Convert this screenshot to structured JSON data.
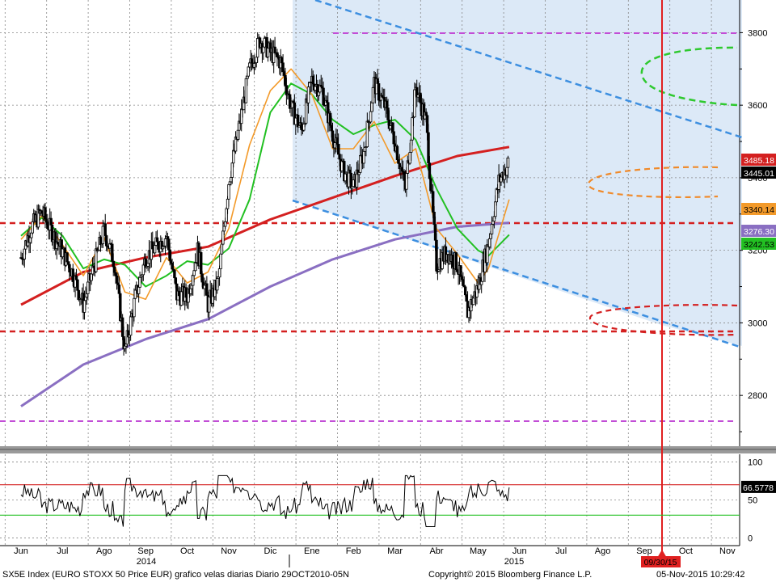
{
  "footer": {
    "title": "SX5E Index (EURO STOXX 50 Price EUR) grafico velas diarias Diario 29OCT2010-05N",
    "copyright": "Copyright© 2015 Bloomberg Finance L.P.",
    "timestamp": "05-Nov-2015 10:29:42"
  },
  "chart_data": [
    {
      "type": "candlestick",
      "title": "",
      "xlabel": "",
      "ylabel": "",
      "x_ticks": [
        "Jun",
        "Jul",
        "Ago",
        "Sep",
        "Oct",
        "Nov",
        "Dic",
        "Ene",
        "Feb",
        "Mar",
        "Abr",
        "May",
        "Jun",
        "Jul",
        "Ago",
        "Sep",
        "Oct",
        "Nov"
      ],
      "year_labels": [
        "2014",
        "2015"
      ],
      "y_ticks": [
        2800,
        3000,
        3200,
        3400,
        3600,
        3800
      ],
      "ylim": [
        2660,
        3890
      ],
      "grid": true,
      "price_labels": [
        {
          "value": "3485.18",
          "color": "#d42020"
        },
        {
          "value": "3445.01",
          "color": "#000000"
        },
        {
          "value": "3340.14",
          "color": "#f39a2a"
        },
        {
          "value": "3276.30",
          "color": "#8a6fc2"
        },
        {
          "value": "3242.53",
          "color": "#22c022"
        }
      ],
      "series": [
        {
          "name": "",
          "color": "#000000",
          "points": [
            [
              0,
              3180
            ],
            [
              0.5,
              3265
            ],
            [
              1,
              3305
            ],
            [
              1.5,
              3250
            ],
            [
              2,
              3195
            ],
            [
              2.5,
              3135
            ],
            [
              3,
              3050
            ],
            [
              3.5,
              3155
            ],
            [
              4,
              3255
            ],
            [
              4.5,
              3165
            ],
            [
              5,
              2920
            ],
            [
              5.5,
              3070
            ],
            [
              6,
              3180
            ],
            [
              6.5,
              3210
            ],
            [
              7,
              3240
            ],
            [
              7.5,
              3075
            ],
            [
              8,
              3075
            ],
            [
              8.5,
              3200
            ],
            [
              9,
              3050
            ],
            [
              9.5,
              3115
            ],
            [
              10,
              3390
            ],
            [
              10.5,
              3540
            ],
            [
              11,
              3700
            ],
            [
              11.5,
              3780
            ],
            [
              12,
              3745
            ],
            [
              12.5,
              3720
            ],
            [
              13,
              3595
            ],
            [
              13.5,
              3530
            ],
            [
              14,
              3670
            ],
            [
              14.5,
              3640
            ],
            [
              15,
              3520
            ],
            [
              15.5,
              3420
            ],
            [
              16,
              3375
            ],
            [
              16.5,
              3470
            ],
            [
              17,
              3660
            ],
            [
              17.5,
              3600
            ],
            [
              18,
              3500
            ],
            [
              18.5,
              3370
            ],
            [
              19,
              3650
            ],
            [
              19.5,
              3555
            ],
            [
              20,
              3160
            ],
            [
              20.5,
              3195
            ],
            [
              21,
              3160
            ],
            [
              21.5,
              3030
            ],
            [
              22,
              3100
            ],
            [
              22.5,
              3220
            ],
            [
              23,
              3390
            ],
            [
              23.5,
              3445
            ]
          ]
        },
        {
          "name": "",
          "color": "#d42020",
          "points": [
            [
              0,
              3050
            ],
            [
              3,
              3140
            ],
            [
              6,
              3180
            ],
            [
              9,
              3210
            ],
            [
              12,
              3285
            ],
            [
              15,
              3345
            ],
            [
              18,
              3405
            ],
            [
              21,
              3460
            ],
            [
              23.5,
              3485
            ]
          ]
        },
        {
          "name": "",
          "color": "#8a6fc2",
          "points": [
            [
              0,
              2770
            ],
            [
              3,
              2885
            ],
            [
              6,
              2955
            ],
            [
              9,
              3010
            ],
            [
              12,
              3100
            ],
            [
              15,
              3175
            ],
            [
              18,
              3230
            ],
            [
              21,
              3265
            ],
            [
              23.5,
              3276
            ]
          ]
        },
        {
          "name": "",
          "color": "#22c022",
          "points": [
            [
              0,
              3240
            ],
            [
              1,
              3290
            ],
            [
              2,
              3240
            ],
            [
              3,
              3150
            ],
            [
              4,
              3175
            ],
            [
              5,
              3160
            ],
            [
              6,
              3100
            ],
            [
              7,
              3130
            ],
            [
              8,
              3170
            ],
            [
              9,
              3160
            ],
            [
              10,
              3205
            ],
            [
              11,
              3340
            ],
            [
              12,
              3580
            ],
            [
              13,
              3660
            ],
            [
              14,
              3630
            ],
            [
              15,
              3560
            ],
            [
              16,
              3520
            ],
            [
              17,
              3545
            ],
            [
              18,
              3560
            ],
            [
              19,
              3505
            ],
            [
              20,
              3370
            ],
            [
              21,
              3260
            ],
            [
              22,
              3200
            ],
            [
              22.5,
              3185
            ],
            [
              23.5,
              3243
            ]
          ]
        },
        {
          "name": "",
          "color": "#f39a2a",
          "points": [
            [
              0,
              3230
            ],
            [
              1,
              3295
            ],
            [
              2,
              3215
            ],
            [
              3,
              3130
            ],
            [
              4,
              3235
            ],
            [
              5,
              3085
            ],
            [
              6,
              3065
            ],
            [
              7,
              3180
            ],
            [
              8,
              3110
            ],
            [
              9,
              3140
            ],
            [
              10,
              3260
            ],
            [
              11,
              3490
            ],
            [
              12,
              3640
            ],
            [
              13,
              3700
            ],
            [
              14,
              3630
            ],
            [
              15,
              3480
            ],
            [
              16,
              3480
            ],
            [
              17,
              3555
            ],
            [
              18,
              3440
            ],
            [
              19,
              3480
            ],
            [
              20,
              3260
            ],
            [
              21,
              3190
            ],
            [
              22,
              3110
            ],
            [
              22.5,
              3150
            ],
            [
              23.5,
              3340
            ]
          ]
        }
      ],
      "annotations": [
        {
          "type": "vertical_line",
          "label": "09/30/15"
        }
      ]
    },
    {
      "type": "line",
      "title": "",
      "xlabel": "",
      "ylabel": "",
      "y_ticks": [
        0,
        50,
        100
      ],
      "ylim": [
        -10,
        110
      ],
      "series": [
        {
          "name": "",
          "color": "#000000",
          "values_label": "66.5778"
        }
      ]
    }
  ]
}
